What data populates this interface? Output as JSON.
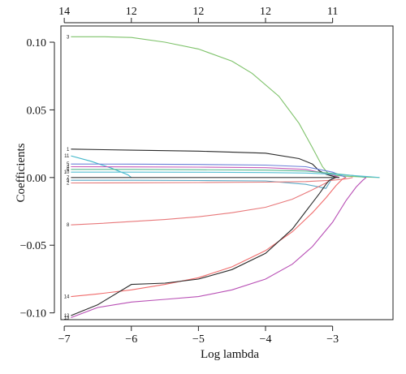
{
  "chart_data": {
    "type": "line",
    "xlabel": "Log lambda",
    "ylabel": "Coefficients",
    "xlim": [
      -7.05,
      -2.1
    ],
    "ylim": [
      -0.105,
      0.112
    ],
    "x_ticks": [
      -7,
      -6,
      -5,
      -4,
      -3
    ],
    "x_tick_labels": [
      "−7",
      "−6",
      "−5",
      "−4",
      "−3"
    ],
    "y_ticks": [
      -0.1,
      -0.05,
      0.0,
      0.05,
      0.1
    ],
    "y_tick_labels": [
      "−0.10",
      "−0.05",
      "0.00",
      "0.05",
      "0.10"
    ],
    "top_axis": {
      "ticks": [
        -7,
        -6,
        -5,
        -4,
        -3
      ],
      "labels": [
        "14",
        "12",
        "12",
        "12",
        "11"
      ]
    },
    "series": [
      {
        "name": "3",
        "color": "#7ec26a",
        "x": [
          -6.9,
          -6.4,
          -6.0,
          -5.5,
          -5.0,
          -4.5,
          -4.2,
          -3.8,
          -3.5,
          -3.3,
          -3.15,
          -3.05,
          -2.95,
          -2.8,
          -2.6,
          -2.45,
          -2.3
        ],
        "y": [
          0.104,
          0.104,
          0.1035,
          0.1,
          0.095,
          0.086,
          0.077,
          0.06,
          0.04,
          0.022,
          0.008,
          0.002,
          0.0015,
          0.001,
          0.0005,
          0.0002,
          0.0
        ]
      },
      {
        "name": "1",
        "color": "#2a2a2a",
        "x": [
          -6.9,
          -6.0,
          -5.0,
          -4.0,
          -3.5,
          -3.3,
          -3.2,
          -3.1,
          -3.0,
          -2.95,
          -2.9
        ],
        "y": [
          0.021,
          0.0202,
          0.0195,
          0.018,
          0.014,
          0.01,
          0.005,
          0.0025,
          0.001,
          0.0003,
          0.0
        ]
      },
      {
        "name": "11",
        "color": "#3fb6c9",
        "x": [
          -6.9,
          -6.6,
          -6.3,
          -6.05,
          -6.0
        ],
        "y": [
          0.016,
          0.012,
          0.007,
          0.002,
          0.0
        ]
      },
      {
        "name": "5",
        "color": "#6a7fd8",
        "x": [
          -6.9,
          -6.0,
          -5.0,
          -4.0,
          -3.4,
          -3.0,
          -2.8
        ],
        "y": [
          0.01,
          0.0099,
          0.0097,
          0.0092,
          0.008,
          0.004,
          0.0
        ]
      },
      {
        "name": "4",
        "color": "#c85bb8",
        "x": [
          -6.9,
          -6.0,
          -5.0,
          -4.0,
          -3.4,
          -3.0,
          -2.9
        ],
        "y": [
          0.008,
          0.0079,
          0.0077,
          0.0073,
          0.006,
          0.002,
          0.0
        ]
      },
      {
        "name": "6",
        "color": "#58b98f",
        "x": [
          -6.9,
          -6.0,
          -5.0,
          -4.0,
          -3.4,
          -3.0,
          -2.7,
          -2.5
        ],
        "y": [
          0.006,
          0.006,
          0.0058,
          0.0055,
          0.0048,
          0.003,
          0.0015,
          0.0
        ]
      },
      {
        "name": "10",
        "color": "#56c0d3",
        "x": [
          -6.9,
          -6.0,
          -5.0,
          -4.0,
          -3.4,
          -3.0,
          -2.7,
          -2.45,
          -2.3
        ],
        "y": [
          0.004,
          0.004,
          0.0039,
          0.0037,
          0.0033,
          0.0025,
          0.0015,
          0.0006,
          0.0
        ]
      },
      {
        "name": "7",
        "color": "#3a3a3a",
        "x": [
          -6.9,
          -6.0,
          -5.0,
          -4.0,
          -3.4,
          -3.0,
          -2.9
        ],
        "y": [
          0.0,
          0.0,
          0.0,
          0.0,
          0.0,
          0.0,
          0.0
        ]
      },
      {
        "name": "9",
        "color": "#5aa9c6",
        "x": [
          -6.9,
          -6.0,
          -5.0,
          -4.0,
          -3.4,
          -3.1,
          -3.05,
          -3.0
        ],
        "y": [
          -0.002,
          -0.002,
          -0.0022,
          -0.0025,
          -0.005,
          -0.008,
          -0.004,
          0.0
        ]
      },
      {
        "name": "2",
        "color": "#e57a7a",
        "x": [
          -6.9,
          -6.0,
          -5.0,
          -4.0,
          -3.4,
          -3.0,
          -2.8,
          -2.7
        ],
        "y": [
          -0.004,
          -0.0039,
          -0.0037,
          -0.0034,
          -0.003,
          -0.002,
          -0.001,
          0.0
        ]
      },
      {
        "name": "8",
        "color": "#e8787a",
        "x": [
          -6.9,
          -6.5,
          -6.0,
          -5.5,
          -5.0,
          -4.5,
          -4.0,
          -3.6,
          -3.3,
          -3.1,
          -3.0,
          -2.95
        ],
        "y": [
          -0.035,
          -0.034,
          -0.0325,
          -0.031,
          -0.029,
          -0.026,
          -0.022,
          -0.016,
          -0.009,
          -0.004,
          -0.001,
          0.0
        ]
      },
      {
        "name": "14",
        "color": "#f06b6b",
        "x": [
          -6.9,
          -6.5,
          -6.0,
          -5.5,
          -5.0,
          -4.5,
          -4.0,
          -3.6,
          -3.3,
          -3.1,
          -2.95,
          -2.85,
          -2.8
        ],
        "y": [
          -0.088,
          -0.086,
          -0.083,
          -0.079,
          -0.074,
          -0.066,
          -0.054,
          -0.04,
          -0.026,
          -0.015,
          -0.006,
          -0.001,
          0.0
        ]
      },
      {
        "name": "12",
        "color": "#2b2b2b",
        "x": [
          -6.9,
          -6.5,
          -6.0,
          -5.5,
          -5.0,
          -4.5,
          -4.0,
          -3.6,
          -3.4,
          -3.2,
          -3.1,
          -3.05,
          -3.0,
          -2.95
        ],
        "y": [
          -0.102,
          -0.094,
          -0.079,
          -0.078,
          -0.075,
          -0.068,
          -0.056,
          -0.038,
          -0.025,
          -0.012,
          -0.005,
          -0.002,
          -0.001,
          0.0
        ]
      },
      {
        "name": "13",
        "color": "#b84fb5",
        "x": [
          -6.9,
          -6.5,
          -6.0,
          -5.5,
          -5.0,
          -4.5,
          -4.0,
          -3.6,
          -3.3,
          -3.0,
          -2.8,
          -2.65,
          -2.55,
          -2.5
        ],
        "y": [
          -0.1035,
          -0.096,
          -0.092,
          -0.09,
          -0.088,
          -0.083,
          -0.075,
          -0.064,
          -0.051,
          -0.033,
          -0.017,
          -0.007,
          -0.002,
          0.0
        ]
      }
    ]
  }
}
